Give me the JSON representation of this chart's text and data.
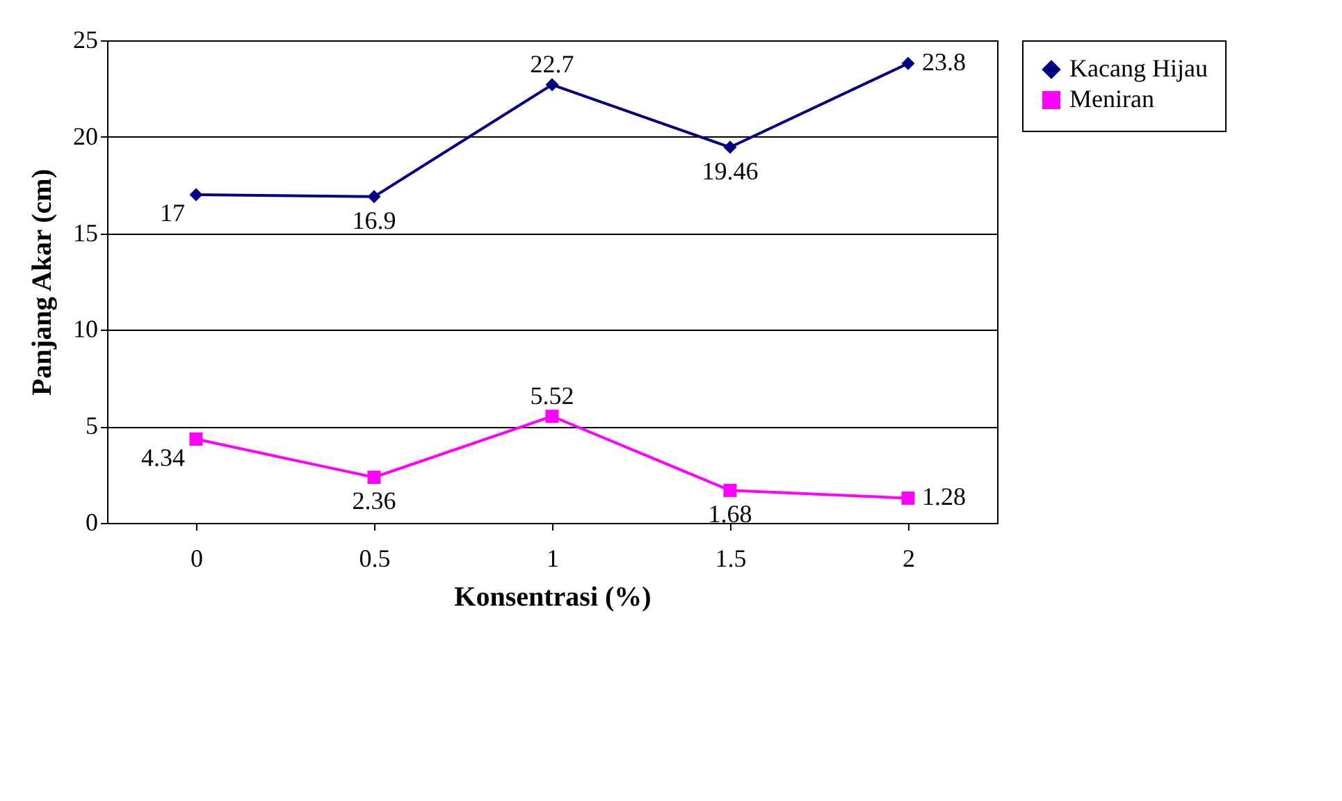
{
  "chart_data": {
    "type": "line",
    "xlabel": "Konsentrasi (%)",
    "ylabel": "Panjang Akar (cm)",
    "categories": [
      "0",
      "0.5",
      "1",
      "1.5",
      "2"
    ],
    "series": [
      {
        "name": "Kacang Hijau",
        "color": "#000080",
        "marker": "diamond",
        "values": [
          17,
          16.9,
          22.7,
          19.46,
          23.8
        ]
      },
      {
        "name": "Meniran",
        "color": "#ff00ff",
        "marker": "square",
        "values": [
          4.34,
          2.36,
          5.52,
          1.68,
          1.28
        ]
      }
    ],
    "ylim": [
      0,
      25
    ],
    "yticks": [
      0,
      5,
      10,
      15,
      20,
      25
    ],
    "grid": "y",
    "legend": "right",
    "data_labels": true,
    "line_style": "solid"
  }
}
